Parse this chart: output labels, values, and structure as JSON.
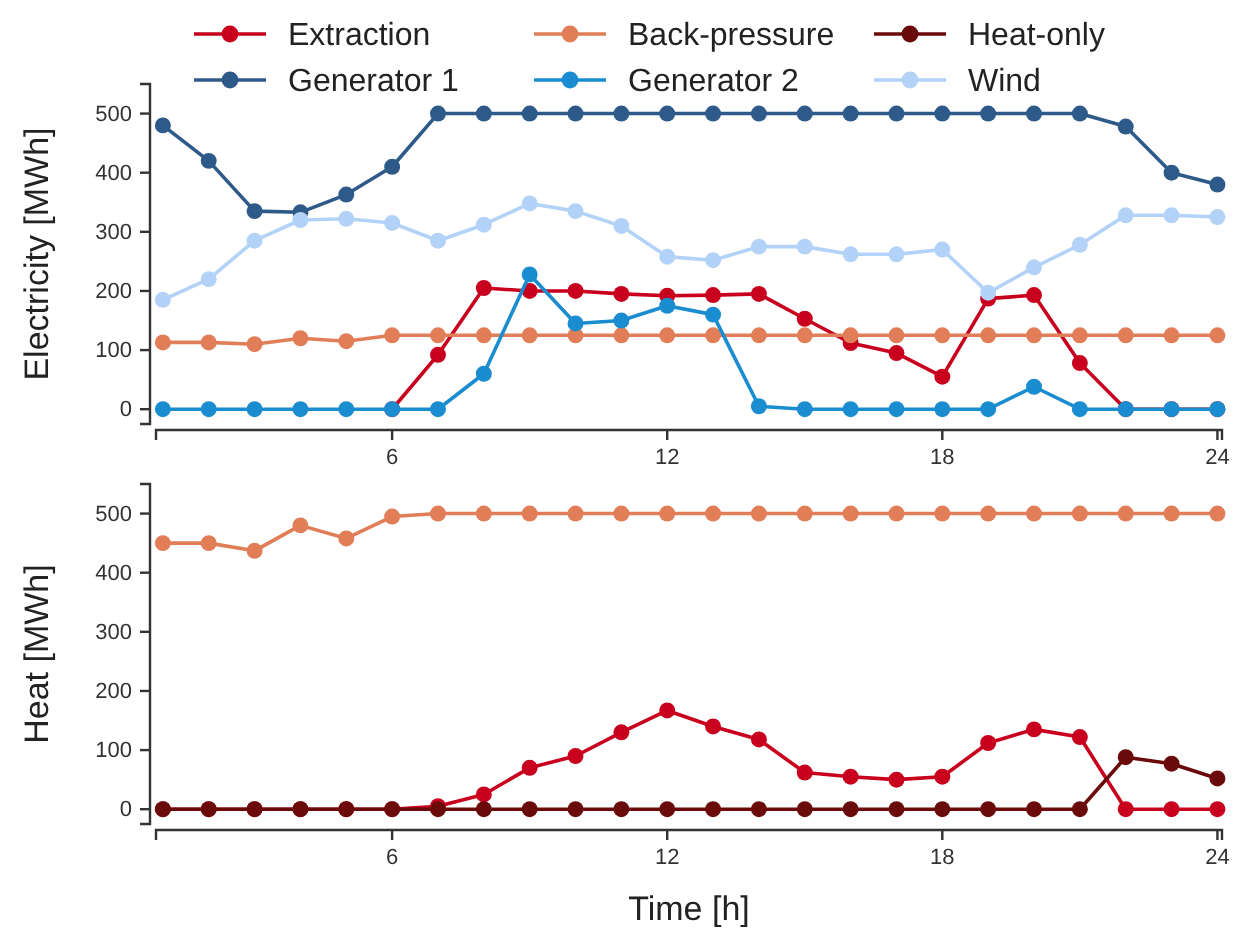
{
  "chart_data": [
    {
      "type": "line",
      "ylabel": "Electricity [MWh]",
      "x": [
        1,
        2,
        3,
        4,
        5,
        6,
        7,
        8,
        9,
        10,
        11,
        12,
        13,
        14,
        15,
        16,
        17,
        18,
        19,
        20,
        21,
        22,
        23,
        24
      ],
      "xlim": [
        0.85,
        24.1
      ],
      "xticks": [
        6,
        12,
        18,
        24
      ],
      "ylim": [
        -25,
        550
      ],
      "yticks": [
        0,
        100,
        200,
        300,
        400,
        500
      ],
      "marker": "circle",
      "legend": "top",
      "series": [
        {
          "name": "Extraction",
          "color": "#c8001e",
          "values": [
            null,
            null,
            null,
            null,
            null,
            0,
            92,
            205,
            200,
            200,
            195,
            192,
            193,
            195,
            153,
            112,
            95,
            55,
            187,
            193,
            78,
            0,
            0,
            0
          ]
        },
        {
          "name": "Back-pressure",
          "color": "#e17e58",
          "values": [
            113,
            113,
            110,
            120,
            115,
            125,
            125,
            125,
            125,
            125,
            125,
            125,
            125,
            125,
            125,
            125,
            125,
            125,
            125,
            125,
            125,
            125,
            125,
            125
          ]
        },
        {
          "name": "Heat-only",
          "color": "#6b0a0a",
          "values": [
            null,
            null,
            null,
            null,
            null,
            null,
            null,
            null,
            null,
            null,
            null,
            null,
            null,
            null,
            null,
            null,
            null,
            null,
            null,
            null,
            null,
            null,
            null,
            null
          ]
        },
        {
          "name": "Generator 1",
          "color": "#2e5a8a",
          "values": [
            480,
            420,
            335,
            333,
            363,
            410,
            500,
            500,
            500,
            500,
            500,
            500,
            500,
            500,
            500,
            500,
            500,
            500,
            500,
            500,
            500,
            478,
            400,
            380
          ]
        },
        {
          "name": "Generator 2",
          "color": "#1a8cd0",
          "values": [
            0,
            0,
            0,
            0,
            0,
            0,
            0,
            60,
            228,
            145,
            150,
            175,
            160,
            5,
            0,
            0,
            0,
            0,
            0,
            38,
            0,
            0,
            0,
            0
          ]
        },
        {
          "name": "Wind",
          "color": "#b3d2f8",
          "values": [
            185,
            220,
            285,
            320,
            322,
            315,
            285,
            312,
            348,
            335,
            310,
            258,
            252,
            275,
            275,
            262,
            262,
            270,
            197,
            240,
            278,
            328,
            328,
            325
          ]
        }
      ]
    },
    {
      "type": "line",
      "ylabel": "Heat [MWh]",
      "xlabel": "Time [h]",
      "x": [
        1,
        2,
        3,
        4,
        5,
        6,
        7,
        8,
        9,
        10,
        11,
        12,
        13,
        14,
        15,
        16,
        17,
        18,
        19,
        20,
        21,
        22,
        23,
        24
      ],
      "xlim": [
        0.85,
        24.1
      ],
      "xticks": [
        6,
        12,
        18,
        24
      ],
      "ylim": [
        -25,
        550
      ],
      "yticks": [
        0,
        100,
        200,
        300,
        400,
        500
      ],
      "marker": "circle",
      "series": [
        {
          "color": "#c8001e",
          "values": [
            0,
            0,
            0,
            0,
            0,
            0,
            5,
            25,
            70,
            90,
            130,
            167,
            140,
            118,
            62,
            55,
            50,
            55,
            112,
            135,
            122,
            0,
            0,
            0
          ]
        },
        {
          "color": "#e17e58",
          "values": [
            450,
            450,
            437,
            480,
            458,
            495,
            500,
            500,
            500,
            500,
            500,
            500,
            500,
            500,
            500,
            500,
            500,
            500,
            500,
            500,
            500,
            500,
            500,
            500
          ]
        },
        {
          "color": "#6b0a0a",
          "values": [
            0,
            0,
            0,
            0,
            0,
            0,
            0,
            0,
            0,
            0,
            0,
            0,
            0,
            0,
            0,
            0,
            0,
            0,
            0,
            0,
            0,
            88,
            77,
            52
          ]
        }
      ]
    }
  ]
}
